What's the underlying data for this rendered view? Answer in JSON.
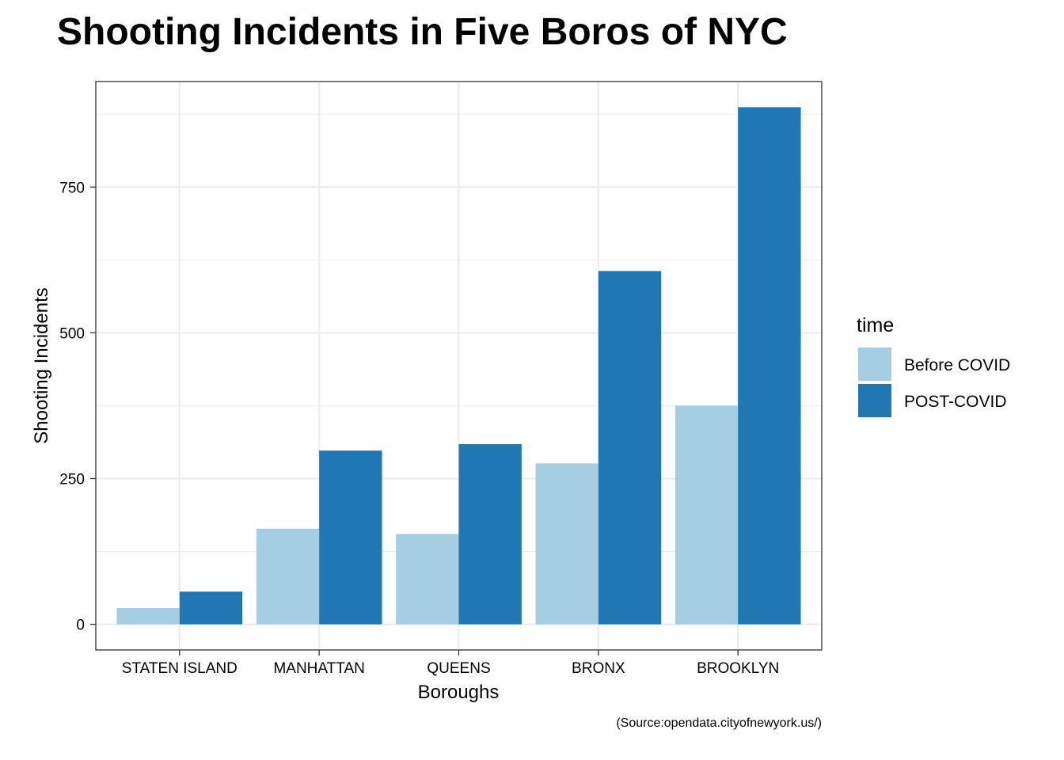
{
  "chart_data": {
    "type": "bar",
    "title": "Shooting Incidents in Five Boros of NYC",
    "xlabel": "Boroughs",
    "ylabel": "Shooting Incidents",
    "caption": "(Source:opendata.cityofnewyork.us/)",
    "categories": [
      "STATEN ISLAND",
      "MANHATTAN",
      "QUEENS",
      "BRONX",
      "BROOKLYN"
    ],
    "legend_title": "time",
    "legend_position": "right",
    "series": [
      {
        "name": "Before COVID",
        "color": "#a6cee3",
        "values": [
          28,
          164,
          155,
          276,
          375
        ]
      },
      {
        "name": "POST-COVID",
        "color": "#1f78b4",
        "values": [
          56,
          298,
          309,
          606,
          887
        ]
      }
    ],
    "ylim": [
      -44,
      931
    ],
    "y_ticks": [
      0,
      250,
      500,
      750
    ],
    "y_tick_labels": [
      "0",
      "250",
      "500",
      "750"
    ],
    "grid": true,
    "colors": {
      "background": "#ffffff",
      "grid": "#ebebeb",
      "panel_border": "#333333"
    }
  }
}
